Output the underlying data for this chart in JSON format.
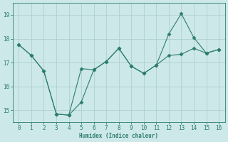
{
  "xlabel": "Humidex (Indice chaleur)",
  "x": [
    0,
    1,
    2,
    3,
    4,
    5,
    6,
    7,
    8,
    9,
    10,
    11,
    12,
    13,
    14,
    15,
    16
  ],
  "line1": [
    17.75,
    17.3,
    16.65,
    14.85,
    14.8,
    16.75,
    16.7,
    17.05,
    17.6,
    16.85,
    16.55,
    16.9,
    17.3,
    17.35,
    17.6,
    17.4,
    17.55
  ],
  "line2": [
    17.75,
    17.3,
    16.65,
    14.85,
    14.8,
    15.35,
    16.7,
    17.05,
    17.6,
    16.85,
    16.55,
    16.9,
    18.2,
    19.05,
    18.05,
    17.4,
    17.55
  ],
  "line_color": "#2d7d6e",
  "bg_color": "#cce8e8",
  "grid_color": "#b0d0d0",
  "ylim": [
    14.5,
    19.5
  ],
  "yticks": [
    15,
    16,
    17,
    18,
    19
  ],
  "xticks": [
    0,
    1,
    2,
    3,
    4,
    5,
    6,
    7,
    8,
    9,
    10,
    11,
    12,
    13,
    14,
    15,
    16
  ]
}
